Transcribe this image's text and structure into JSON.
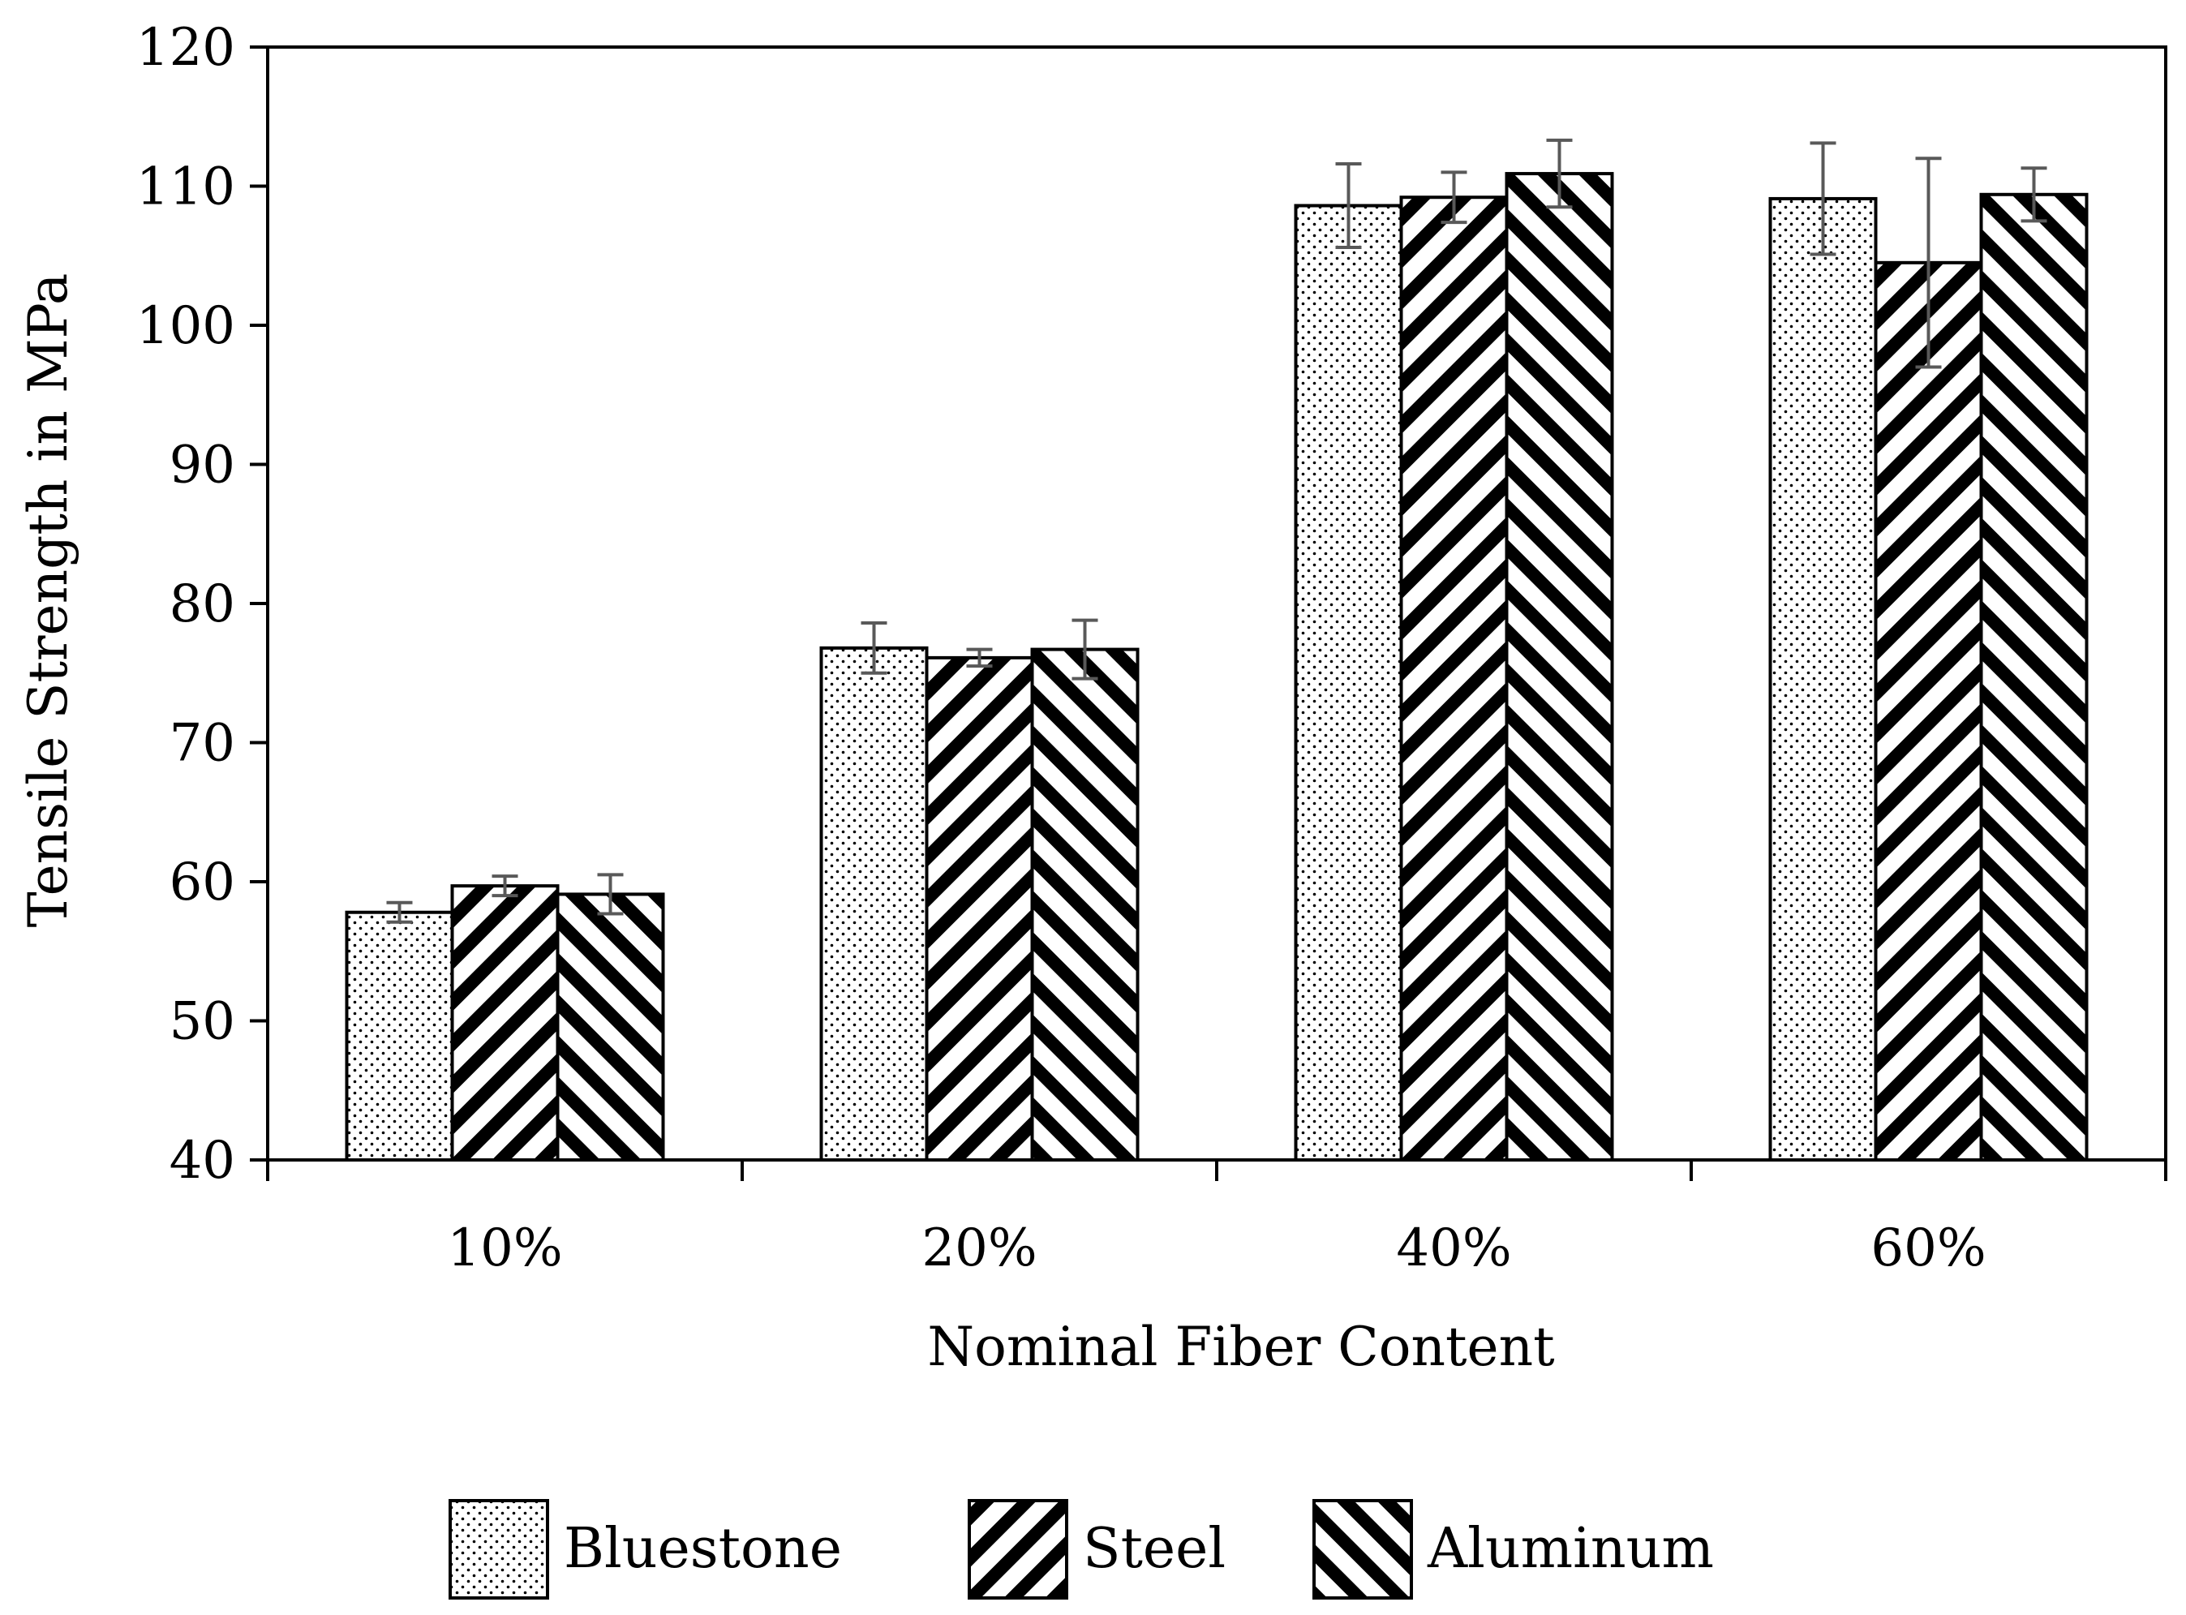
{
  "chart_data": {
    "type": "bar",
    "title": "",
    "xlabel": "Nominal Fiber Content",
    "ylabel": "Tensile Strength in MPa",
    "ylim": [
      40,
      120
    ],
    "yticks": [
      "40",
      "50",
      "60",
      "70",
      "80",
      "90",
      "100",
      "110",
      "120"
    ],
    "categories": [
      "10%",
      "20%",
      "40%",
      "60%"
    ],
    "series": [
      {
        "name": "Bluestone",
        "pattern": "dots",
        "values": [
          57.8,
          76.8,
          108.6,
          109.1
        ],
        "errors": [
          0.7,
          1.8,
          3.0,
          4.0
        ]
      },
      {
        "name": "Steel",
        "pattern": "diagonal-down",
        "values": [
          59.7,
          76.1,
          109.2,
          104.5
        ],
        "errors": [
          0.7,
          0.6,
          1.8,
          7.5
        ]
      },
      {
        "name": "Aluminum",
        "pattern": "diagonal-up",
        "values": [
          59.1,
          76.7,
          110.9,
          109.4
        ],
        "errors": [
          1.4,
          2.1,
          2.4,
          1.9
        ]
      }
    ],
    "grid": false,
    "legend_position": "bottom",
    "colors": {
      "bar_stroke": "#000000",
      "error_bar": "#595959",
      "fill": "#ffffff"
    }
  }
}
